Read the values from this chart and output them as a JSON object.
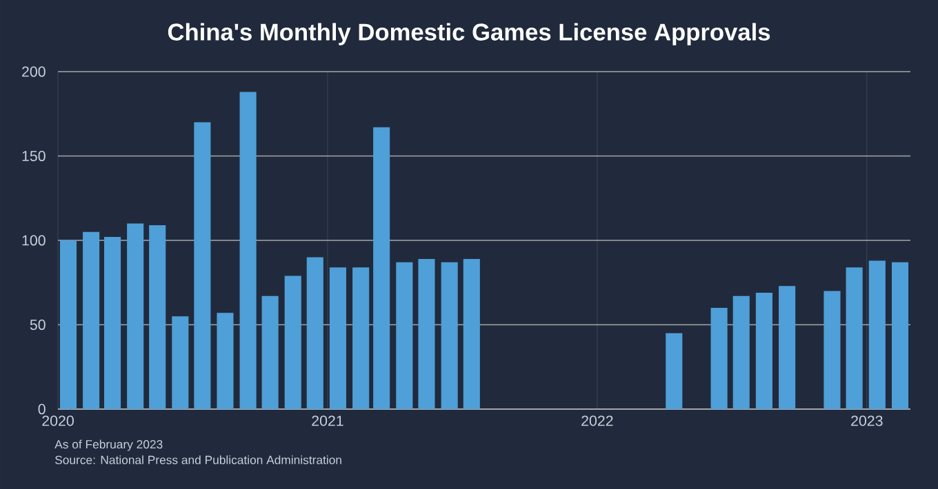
{
  "chart_data": {
    "type": "bar",
    "title": "China's Monthly Domestic Games License Approvals",
    "x": [
      "2020-01-15",
      "2020-02-15",
      "2020-03-15",
      "2020-04-15",
      "2020-05-15",
      "2020-06-15",
      "2020-07-15",
      "2020-08-15",
      "2020-09-15",
      "2020-10-15",
      "2020-11-15",
      "2020-12-15",
      "2021-01-15",
      "2021-02-15",
      "2021-03-15",
      "2021-04-15",
      "2021-05-15",
      "2021-06-15",
      "2021-07-15",
      "2021-08-15",
      "2021-09-15",
      "2021-10-15",
      "2021-11-15",
      "2021-12-15",
      "2022-01-15",
      "2022-02-15",
      "2022-03-15",
      "2022-04-15",
      "2022-05-15",
      "2022-06-15",
      "2022-07-15",
      "2022-08-15",
      "2022-09-15",
      "2022-10-15",
      "2022-11-15",
      "2022-12-15",
      "2023-01-15",
      "2023-02-15"
    ],
    "values": [
      100,
      105,
      102,
      110,
      109,
      55,
      170,
      57,
      188,
      67,
      79,
      90,
      84,
      84,
      167,
      87,
      89,
      87,
      89,
      null,
      null,
      null,
      null,
      null,
      null,
      null,
      null,
      45,
      null,
      60,
      67,
      69,
      73,
      null,
      70,
      84,
      88,
      87
    ],
    "color": "#4f9fd8",
    "xlim": [
      "2020-01-01",
      "2023-03-01"
    ],
    "xticks": [
      "2020",
      "2021",
      "2022",
      "2023"
    ],
    "ylim": [
      0,
      200
    ],
    "yticks": [
      0,
      50,
      100,
      150,
      200
    ],
    "grid": true,
    "annotations": [
      "As of February 2023",
      "Source: National Press and Publication Administration"
    ]
  }
}
